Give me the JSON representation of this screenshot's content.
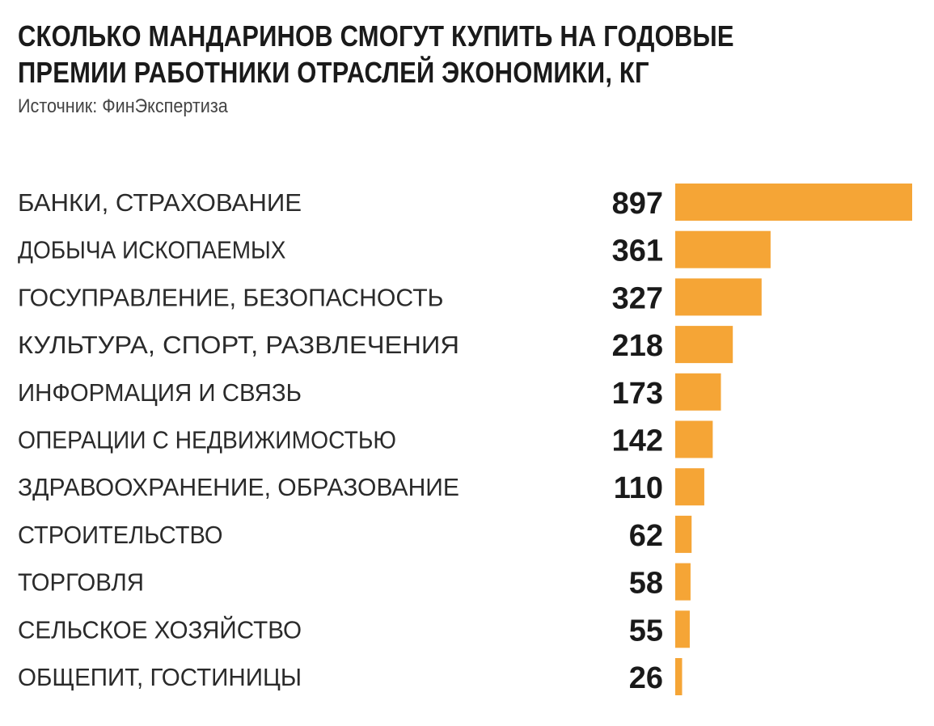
{
  "header": {
    "title": "СКОЛЬКО МАНДАРИНОВ СМОГУТ КУПИТЬ НА ГОДОВЫЕ\nПРЕМИИ РАБОТНИКИ ОТРАСЛЕЙ ЭКОНОМИКИ, КГ",
    "source": "Источник: ФинЭкспертиза"
  },
  "colors": {
    "bar": "#F5A536",
    "text": "#1a1a1a"
  },
  "chart_data": {
    "type": "bar",
    "orientation": "horizontal",
    "title": "СКОЛЬКО МАНДАРИНОВ СМОГУТ КУПИТЬ НА ГОДОВЫЕ ПРЕМИИ РАБОТНИКИ ОТРАСЛЕЙ ЭКОНОМИКИ, КГ",
    "categories": [
      "БАНКИ, СТРАХОВАНИЕ",
      "ДОБЫЧА ИСКОПАЕМЫХ",
      "ГОСУПРАВЛЕНИЕ, БЕЗОПАСНОСТЬ",
      "КУЛЬТУРА, СПОРТ, РАЗВЛЕЧЕНИЯ",
      "ИНФОРМАЦИЯ И СВЯЗЬ",
      "ОПЕРАЦИИ С НЕДВИЖИМОСТЬЮ",
      "ЗДРАВООХРАНЕНИЕ, ОБРАЗОВАНИЕ",
      "СТРОИТЕЛЬСТВО",
      "ТОРГОВЛЯ",
      "СЕЛЬСКОЕ ХОЗЯЙСТВО",
      "ОБЩЕПИТ, ГОСТИНИЦЫ"
    ],
    "values": [
      897,
      361,
      327,
      218,
      173,
      142,
      110,
      62,
      58,
      55,
      26
    ],
    "value_labels": [
      "897",
      "361",
      "327",
      "218",
      "173",
      "142",
      "110",
      "62",
      "58",
      "55",
      "26"
    ],
    "xlabel": "",
    "ylabel": "",
    "xlim": [
      0,
      897
    ],
    "grid": false,
    "legend": "none"
  }
}
